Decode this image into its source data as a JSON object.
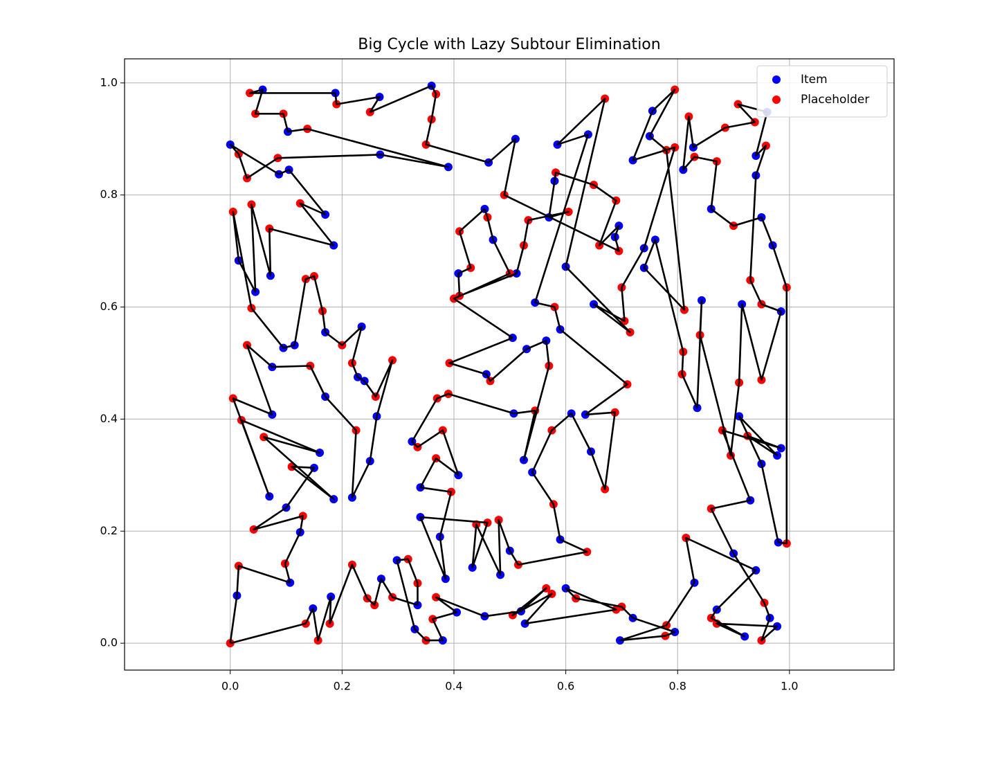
{
  "chart_data": {
    "type": "scatter",
    "title": "Big Cycle with Lazy Subtour Elimination",
    "xlim": [
      -0.189,
      1.187
    ],
    "ylim": [
      -0.048,
      1.043
    ],
    "xticks": [
      {
        "value": 0,
        "label": "0.0"
      },
      {
        "value": 0.2,
        "label": "0.2"
      },
      {
        "value": 0.4,
        "label": "0.4"
      },
      {
        "value": 0.6,
        "label": "0.6"
      },
      {
        "value": 0.8,
        "label": "0.8"
      },
      {
        "value": 1,
        "label": "1.0"
      }
    ],
    "yticks": [
      {
        "value": 0,
        "label": "0.0"
      },
      {
        "value": 0.2,
        "label": "0.2"
      },
      {
        "value": 0.4,
        "label": "0.4"
      },
      {
        "value": 0.6,
        "label": "0.6"
      },
      {
        "value": 0.8,
        "label": "0.8"
      },
      {
        "value": 1,
        "label": "1.0"
      }
    ],
    "grid": true,
    "legend": "upper right",
    "series": [
      {
        "name": "Item",
        "color": "blue",
        "x": [
          0.148,
          0.18,
          0.27,
          0.335,
          0.298,
          0.33,
          0.38,
          0.405,
          0.455,
          0.52,
          0.527,
          0.6,
          0.72,
          0.795,
          0.697,
          0.83,
          0.94,
          0.87,
          0.92,
          0.978,
          0.965,
          0.9,
          0.93,
          0.985,
          0.978,
          0.91,
          0.95,
          0.98,
          0.97,
          0.95,
          0.86,
          0.81,
          0.828,
          0.96,
          0.94,
          0.94,
          0.985,
          0.915,
          0.843,
          0.835,
          0.76,
          0.74,
          0.75,
          0.755,
          0.72,
          0.74,
          0.65,
          0.6,
          0.585,
          0.64,
          0.545,
          0.59,
          0.635,
          0.645,
          0.61,
          0.54,
          0.59,
          0.5,
          0.483,
          0.433,
          0.34,
          0.385,
          0.375,
          0.34,
          0.408,
          0.325,
          0.507,
          0.525,
          0.565,
          0.53,
          0.458,
          0.505,
          0.47,
          0.455,
          0.408,
          0.512,
          0.57,
          0.58,
          0.695,
          0.688,
          0.51,
          0.462,
          0.36,
          0.267,
          0.188,
          0.058,
          0.103,
          0.39,
          0.268,
          0.0,
          0.087,
          0.105,
          0.17,
          0.185,
          0.072,
          0.045,
          0.015,
          0.095,
          0.115,
          0.17,
          0.235,
          0.228,
          0.24,
          0.262,
          0.25,
          0.218,
          0.17,
          0.075,
          0.075,
          0.07,
          0.16,
          0.185,
          0.15,
          0.1,
          0.125,
          0.107,
          0.012
        ],
        "y": [
          0.062,
          0.083,
          0.115,
          0.068,
          0.148,
          0.025,
          0.005,
          0.055,
          0.048,
          0.057,
          0.035,
          0.098,
          0.045,
          0.02,
          0.005,
          0.108,
          0.13,
          0.06,
          0.012,
          0.03,
          0.045,
          0.16,
          0.255,
          0.348,
          0.335,
          0.405,
          0.32,
          0.18,
          0.71,
          0.76,
          0.775,
          0.845,
          0.885,
          0.948,
          0.87,
          0.835,
          0.592,
          0.605,
          0.612,
          0.42,
          0.72,
          0.67,
          0.905,
          0.95,
          0.862,
          0.705,
          0.605,
          0.672,
          0.89,
          0.908,
          0.608,
          0.56,
          0.408,
          0.342,
          0.41,
          0.305,
          0.185,
          0.165,
          0.122,
          0.135,
          0.225,
          0.115,
          0.19,
          0.278,
          0.3,
          0.36,
          0.41,
          0.327,
          0.54,
          0.525,
          0.48,
          0.545,
          0.72,
          0.775,
          0.66,
          0.66,
          0.76,
          0.825,
          0.745,
          0.725,
          0.9,
          0.858,
          0.995,
          0.975,
          0.982,
          0.988,
          0.913,
          0.85,
          0.872,
          0.89,
          0.837,
          0.845,
          0.765,
          0.71,
          0.656,
          0.627,
          0.683,
          0.527,
          0.532,
          0.555,
          0.565,
          0.475,
          0.468,
          0.405,
          0.325,
          0.26,
          0.44,
          0.493,
          0.408,
          0.262,
          0.34,
          0.257,
          0.313,
          0.242,
          0.198,
          0.108,
          0.085
        ]
      },
      {
        "name": "Placeholder",
        "color": "red",
        "x": [
          0.0,
          0.135,
          0.157,
          0.178,
          0.218,
          0.245,
          0.258,
          0.29,
          0.335,
          0.318,
          0.35,
          0.362,
          0.368,
          0.565,
          0.505,
          0.575,
          0.69,
          0.618,
          0.7,
          0.778,
          0.78,
          0.815,
          0.86,
          0.87,
          0.95,
          0.955,
          0.86,
          0.88,
          0.925,
          0.995,
          0.995,
          0.9,
          0.87,
          0.83,
          0.82,
          0.885,
          0.938,
          0.908,
          0.958,
          0.93,
          0.95,
          0.95,
          0.91,
          0.895,
          0.84,
          0.808,
          0.81,
          0.812,
          0.78,
          0.795,
          0.795,
          0.7,
          0.705,
          0.715,
          0.67,
          0.58,
          0.71,
          0.688,
          0.67,
          0.575,
          0.578,
          0.638,
          0.515,
          0.48,
          0.44,
          0.46,
          0.395,
          0.368,
          0.38,
          0.335,
          0.37,
          0.39,
          0.545,
          0.57,
          0.465,
          0.392,
          0.4,
          0.5,
          0.46,
          0.41,
          0.43,
          0.41,
          0.525,
          0.533,
          0.605,
          0.582,
          0.65,
          0.69,
          0.66,
          0.695,
          0.49,
          0.35,
          0.36,
          0.368,
          0.25,
          0.19,
          0.035,
          0.045,
          0.095,
          0.138,
          0.085,
          0.03,
          0.015,
          0.125,
          0.07,
          0.038,
          0.005,
          0.038,
          0.135,
          0.15,
          0.165,
          0.2,
          0.218,
          0.26,
          0.29,
          0.225,
          0.143,
          0.03,
          0.005,
          0.02,
          0.06,
          0.11,
          0.042,
          0.13,
          0.098,
          0.015
        ],
        "y": [
          0.0,
          0.035,
          0.005,
          0.035,
          0.14,
          0.08,
          0.068,
          0.082,
          0.107,
          0.15,
          0.005,
          0.043,
          0.082,
          0.098,
          0.05,
          0.088,
          0.06,
          0.08,
          0.065,
          0.013,
          0.032,
          0.188,
          0.045,
          0.035,
          0.005,
          0.072,
          0.24,
          0.38,
          0.37,
          0.178,
          0.635,
          0.745,
          0.86,
          0.868,
          0.94,
          0.92,
          0.93,
          0.962,
          0.888,
          0.648,
          0.605,
          0.47,
          0.465,
          0.335,
          0.55,
          0.48,
          0.52,
          0.595,
          0.88,
          0.988,
          0.885,
          0.635,
          0.575,
          0.555,
          0.972,
          0.6,
          0.462,
          0.412,
          0.275,
          0.38,
          0.248,
          0.163,
          0.14,
          0.22,
          0.212,
          0.215,
          0.27,
          0.33,
          0.38,
          0.35,
          0.437,
          0.445,
          0.415,
          0.495,
          0.468,
          0.5,
          0.615,
          0.66,
          0.76,
          0.735,
          0.67,
          0.62,
          0.71,
          0.755,
          0.77,
          0.84,
          0.818,
          0.79,
          0.71,
          0.7,
          0.8,
          0.89,
          0.935,
          0.98,
          0.948,
          0.962,
          0.982,
          0.945,
          0.945,
          0.918,
          0.866,
          0.83,
          0.873,
          0.785,
          0.74,
          0.783,
          0.77,
          0.598,
          0.65,
          0.655,
          0.593,
          0.532,
          0.5,
          0.44,
          0.505,
          0.38,
          0.495,
          0.532,
          0.437,
          0.398,
          0.368,
          0.315,
          0.203,
          0.227,
          0.142,
          0.138
        ]
      },
      {
        "type": "line",
        "color": "black",
        "x": [
          0.0,
          0.135,
          0.148,
          0.157,
          0.18,
          0.178,
          0.218,
          0.245,
          0.258,
          0.27,
          0.29,
          0.335,
          0.335,
          0.318,
          0.298,
          0.33,
          0.35,
          0.38,
          0.362,
          0.405,
          0.368,
          0.455,
          0.52,
          0.565,
          0.505,
          0.575,
          0.527,
          0.69,
          0.6,
          0.618,
          0.7,
          0.72,
          0.795,
          0.778,
          0.697,
          0.78,
          0.83,
          0.815,
          0.94,
          0.87,
          0.86,
          0.92,
          0.87,
          0.978,
          0.95,
          0.965,
          0.955,
          0.9,
          0.86,
          0.93,
          0.88,
          0.985,
          0.925,
          0.978,
          0.91,
          0.95,
          0.98,
          0.995,
          0.995,
          0.97,
          0.95,
          0.9,
          0.86,
          0.87,
          0.83,
          0.81,
          0.82,
          0.828,
          0.885,
          0.938,
          0.908,
          0.96,
          0.94,
          0.958,
          0.94,
          0.93,
          0.95,
          0.985,
          0.95,
          0.915,
          0.91,
          0.895,
          0.84,
          0.843,
          0.835,
          0.808,
          0.81,
          0.76,
          0.74,
          0.812,
          0.78,
          0.75,
          0.795,
          0.755,
          0.72,
          0.795,
          0.74,
          0.7,
          0.705,
          0.65,
          0.715,
          0.6,
          0.67,
          0.585,
          0.64,
          0.545,
          0.58,
          0.59,
          0.71,
          0.635,
          0.688,
          0.67,
          0.645,
          0.61,
          0.575,
          0.54,
          0.578,
          0.59,
          0.638,
          0.515,
          0.5,
          0.48,
          0.483,
          0.44,
          0.433,
          0.46,
          0.34,
          0.385,
          0.375,
          0.395,
          0.34,
          0.368,
          0.408,
          0.38,
          0.335,
          0.325,
          0.37,
          0.39,
          0.507,
          0.545,
          0.525,
          0.57,
          0.565,
          0.53,
          0.465,
          0.458,
          0.392,
          0.505,
          0.4,
          0.5,
          0.47,
          0.46,
          0.455,
          0.41,
          0.43,
          0.408,
          0.41,
          0.512,
          0.525,
          0.533,
          0.605,
          0.57,
          0.58,
          0.582,
          0.65,
          0.69,
          0.66,
          0.695,
          0.688,
          0.695,
          0.49,
          0.51,
          0.462,
          0.35,
          0.36,
          0.368,
          0.36,
          0.25,
          0.267,
          0.19,
          0.188,
          0.035,
          0.058,
          0.045,
          0.095,
          0.103,
          0.138,
          0.39,
          0.268,
          0.085,
          0.03,
          0.015,
          0.0,
          0.087,
          0.105,
          0.17,
          0.125,
          0.185,
          0.07,
          0.072,
          0.038,
          0.045,
          0.015,
          0.005,
          0.038,
          0.095,
          0.115,
          0.135,
          0.15,
          0.165,
          0.17,
          0.2,
          0.235,
          0.218,
          0.228,
          0.24,
          0.26,
          0.29,
          0.262,
          0.25,
          0.218,
          0.225,
          0.17,
          0.143,
          0.075,
          0.03,
          0.075,
          0.005,
          0.07,
          0.02,
          0.16,
          0.06,
          0.185,
          0.11,
          0.15,
          0.1,
          0.042,
          0.13,
          0.125,
          0.098,
          0.107,
          0.015,
          0.012,
          0.0
        ],
        "y": [
          0.0,
          0.035,
          0.062,
          0.005,
          0.083,
          0.035,
          0.14,
          0.08,
          0.068,
          0.115,
          0.082,
          0.068,
          0.107,
          0.15,
          0.148,
          0.025,
          0.005,
          0.005,
          0.043,
          0.055,
          0.082,
          0.048,
          0.057,
          0.098,
          0.05,
          0.088,
          0.035,
          0.06,
          0.098,
          0.08,
          0.065,
          0.045,
          0.02,
          0.013,
          0.005,
          0.032,
          0.108,
          0.188,
          0.13,
          0.06,
          0.045,
          0.012,
          0.035,
          0.03,
          0.005,
          0.045,
          0.072,
          0.16,
          0.24,
          0.255,
          0.38,
          0.348,
          0.37,
          0.335,
          0.405,
          0.32,
          0.18,
          0.178,
          0.635,
          0.71,
          0.76,
          0.745,
          0.775,
          0.86,
          0.868,
          0.845,
          0.94,
          0.885,
          0.92,
          0.93,
          0.962,
          0.948,
          0.87,
          0.888,
          0.835,
          0.648,
          0.605,
          0.592,
          0.47,
          0.605,
          0.465,
          0.335,
          0.55,
          0.612,
          0.42,
          0.48,
          0.52,
          0.72,
          0.67,
          0.595,
          0.88,
          0.905,
          0.988,
          0.95,
          0.862,
          0.885,
          0.705,
          0.635,
          0.575,
          0.605,
          0.555,
          0.672,
          0.972,
          0.89,
          0.908,
          0.608,
          0.6,
          0.56,
          0.462,
          0.408,
          0.412,
          0.275,
          0.342,
          0.41,
          0.38,
          0.305,
          0.248,
          0.185,
          0.163,
          0.14,
          0.165,
          0.22,
          0.122,
          0.212,
          0.135,
          0.215,
          0.225,
          0.115,
          0.19,
          0.27,
          0.278,
          0.33,
          0.3,
          0.38,
          0.35,
          0.36,
          0.437,
          0.445,
          0.41,
          0.415,
          0.327,
          0.495,
          0.54,
          0.525,
          0.468,
          0.48,
          0.5,
          0.545,
          0.615,
          0.66,
          0.72,
          0.76,
          0.775,
          0.735,
          0.67,
          0.66,
          0.62,
          0.66,
          0.71,
          0.755,
          0.77,
          0.76,
          0.825,
          0.84,
          0.818,
          0.79,
          0.71,
          0.745,
          0.725,
          0.7,
          0.8,
          0.9,
          0.858,
          0.89,
          0.935,
          0.98,
          0.995,
          0.948,
          0.975,
          0.962,
          0.982,
          0.982,
          0.988,
          0.945,
          0.945,
          0.913,
          0.918,
          0.85,
          0.872,
          0.866,
          0.83,
          0.873,
          0.89,
          0.837,
          0.845,
          0.765,
          0.785,
          0.71,
          0.74,
          0.656,
          0.783,
          0.627,
          0.683,
          0.77,
          0.598,
          0.527,
          0.532,
          0.65,
          0.655,
          0.593,
          0.555,
          0.532,
          0.565,
          0.5,
          0.475,
          0.468,
          0.44,
          0.505,
          0.405,
          0.325,
          0.26,
          0.38,
          0.44,
          0.495,
          0.493,
          0.532,
          0.408,
          0.437,
          0.262,
          0.398,
          0.34,
          0.368,
          0.257,
          0.315,
          0.313,
          0.242,
          0.203,
          0.227,
          0.198,
          0.142,
          0.108,
          0.138,
          0.085,
          0.0
        ]
      }
    ]
  }
}
